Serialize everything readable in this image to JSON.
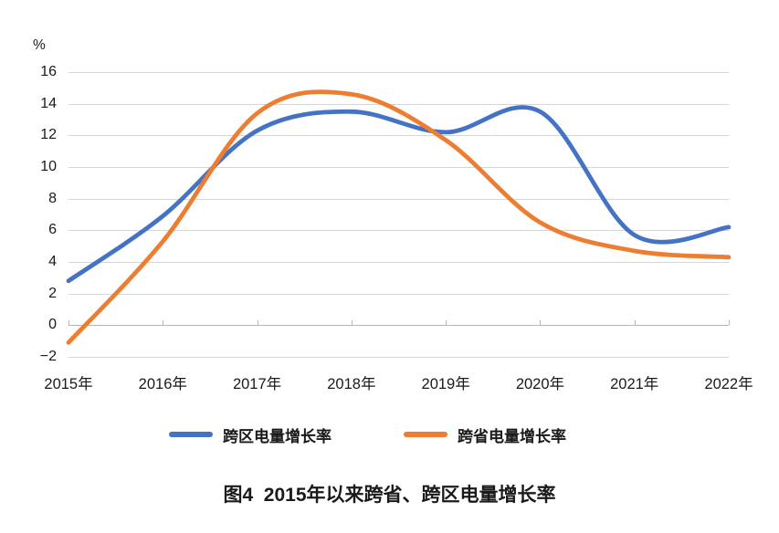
{
  "chart_data": {
    "type": "line",
    "unit_label": "%",
    "categories": [
      "2015年",
      "2016年",
      "2017年",
      "2018年",
      "2019年",
      "2020年",
      "2021年",
      "2022年"
    ],
    "series": [
      {
        "name": "跨区电量增长率",
        "color": "#4472c4",
        "values": [
          2.8,
          6.9,
          12.3,
          13.5,
          12.2,
          13.5,
          5.7,
          6.2
        ]
      },
      {
        "name": "跨省电量增长率",
        "color": "#ed7d31",
        "values": [
          -1.1,
          5.3,
          13.4,
          14.6,
          11.7,
          6.5,
          4.7,
          4.3
        ]
      }
    ],
    "yticks": [
      16,
      14,
      12,
      10,
      8,
      6,
      4,
      2,
      0,
      -2
    ],
    "ytick_labels": [
      "16",
      "14",
      "12",
      "10",
      "8",
      "6",
      "4",
      "2",
      "0",
      "−2"
    ],
    "ylim": [
      -2,
      16
    ],
    "grid": true,
    "smooth": true,
    "legend_position": "bottom-center",
    "grid_color": "#d6d6d6",
    "axis_color": "#b5b5b5",
    "text_color": "#1a1a1a"
  },
  "caption": {
    "text": "图4  2015年以来跨省、跨区电量增长率"
  }
}
